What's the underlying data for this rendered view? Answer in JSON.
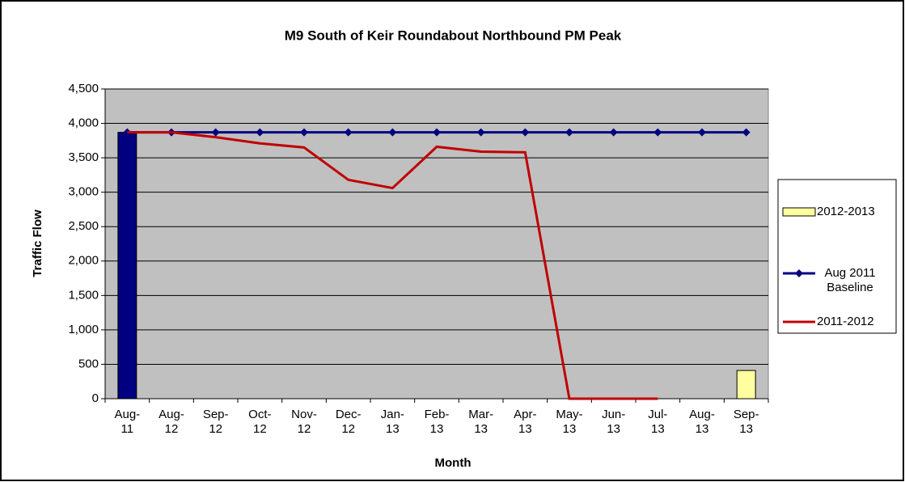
{
  "chart_data": {
    "type": "bar_line",
    "title": "M9 South of Keir Roundabout Northbound PM Peak",
    "xlabel": "Month",
    "ylabel": "Traffic Flow",
    "categories": [
      "Aug-11",
      "Aug-12",
      "Sep-12",
      "Oct-12",
      "Nov-12",
      "Dec-12",
      "Jan-13",
      "Feb-13",
      "Mar-13",
      "Apr-13",
      "May-13",
      "Jun-13",
      "Jul-13",
      "Aug-13",
      "Sep-13"
    ],
    "series": [
      {
        "name": "2012-2013",
        "type": "bar",
        "color": "#ffffa0",
        "colors": [
          "#000080",
          "#ffffa0",
          "#ffffa0",
          "#ffffa0",
          "#ffffa0",
          "#ffffa0",
          "#ffffa0",
          "#ffffa0",
          "#ffffa0",
          "#ffffa0",
          "#ffffa0",
          "#ffffa0",
          "#ffffa0",
          "#ffffa0",
          "#ffffa0"
        ],
        "values": [
          3870,
          null,
          null,
          null,
          null,
          null,
          null,
          null,
          null,
          null,
          null,
          null,
          null,
          null,
          410
        ]
      },
      {
        "name": "Aug 2011 Baseline",
        "type": "line",
        "marker": "diamond",
        "color": "#000080",
        "values": [
          3870,
          3870,
          3870,
          3870,
          3870,
          3870,
          3870,
          3870,
          3870,
          3870,
          3870,
          3870,
          3870,
          3870,
          3870
        ]
      },
      {
        "name": "2011-2012",
        "type": "line",
        "color": "#c00000",
        "values": [
          3870,
          3870,
          3800,
          3710,
          3650,
          3180,
          3060,
          3660,
          3590,
          3580,
          0,
          0,
          0,
          null,
          null
        ]
      }
    ],
    "ylim": [
      0,
      4500
    ],
    "yticks": [
      0,
      500,
      {
        "value": 1000,
        "label": "1,000"
      },
      {
        "value": 1500,
        "label": "1,500"
      },
      {
        "value": 2000,
        "label": "2,000"
      },
      {
        "value": 2500,
        "label": "2,500"
      },
      {
        "value": 3000,
        "label": "3,000"
      },
      {
        "value": 3500,
        "label": "3,500"
      },
      {
        "value": 4000,
        "label": "4,000"
      },
      {
        "value": 4500,
        "label": "4,500"
      }
    ],
    "grid": true,
    "plot_background": "#c0c0c0",
    "legend": "right"
  }
}
